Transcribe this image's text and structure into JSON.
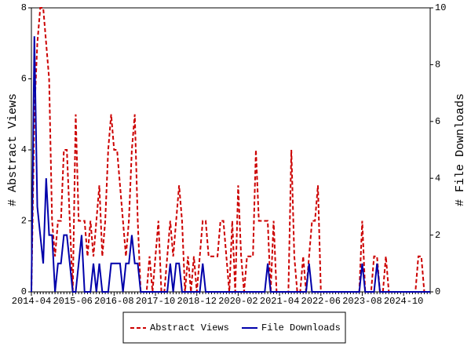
{
  "chart_data": {
    "type": "line",
    "y_label": "# Abstract Views",
    "y2_label": "# File Downloads",
    "categories": [
      "2014-04",
      null,
      null,
      null,
      null,
      null,
      null,
      null,
      null,
      null,
      null,
      null,
      null,
      null,
      "2015-06",
      null,
      null,
      null,
      null,
      null,
      null,
      null,
      null,
      null,
      null,
      null,
      null,
      null,
      "2016-08",
      null,
      null,
      null,
      null,
      null,
      null,
      null,
      null,
      null,
      null,
      null,
      null,
      null,
      "2017-10",
      null,
      null,
      null,
      null,
      null,
      null,
      null,
      null,
      null,
      null,
      null,
      null,
      null,
      "2018-12",
      null,
      null,
      null,
      null,
      null,
      null,
      null,
      null,
      null,
      null,
      null,
      null,
      null,
      "2020-02",
      null,
      null,
      null,
      null,
      null,
      null,
      null,
      null,
      null,
      null,
      null,
      null,
      null,
      "2021-04",
      null,
      null,
      null,
      null,
      null,
      null,
      null,
      null,
      null,
      null,
      null,
      null,
      null,
      "2022-06",
      null,
      null,
      null,
      null,
      null,
      null,
      null,
      null,
      null,
      null,
      null,
      null,
      null,
      "2023-08",
      null,
      null,
      null,
      null,
      null,
      null,
      null,
      null,
      null,
      null,
      null,
      null,
      null,
      "2024-10",
      null,
      null,
      null,
      null,
      null,
      null,
      null,
      null,
      null
    ],
    "ylim": [
      0,
      8
    ],
    "yticks": [
      0,
      2,
      4,
      6,
      8
    ],
    "y2lim": [
      0,
      10
    ],
    "y2ticks": [
      0,
      2,
      4,
      6,
      8,
      10
    ],
    "series": [
      {
        "name": "Abstract Views",
        "color": "#cc0000",
        "dashed": true,
        "values": [
          0,
          5,
          7,
          8,
          8,
          7,
          6,
          2,
          1,
          2,
          2,
          4,
          4,
          2,
          0,
          5,
          2,
          2,
          2,
          1,
          2,
          1,
          2,
          3,
          1,
          2,
          4,
          5,
          4,
          4,
          3,
          2,
          1,
          2,
          4,
          5,
          2,
          0,
          0,
          0,
          1,
          0,
          1,
          2,
          0,
          0,
          1,
          2,
          1,
          2,
          3,
          2,
          0,
          1,
          0,
          1,
          0,
          1,
          2,
          2,
          1,
          1,
          1,
          1,
          2,
          2,
          1,
          0,
          2,
          0,
          3,
          1,
          0,
          1,
          1,
          1,
          4,
          2,
          2,
          2,
          2,
          0,
          2,
          0,
          0,
          0,
          0,
          0,
          4,
          1,
          0,
          0,
          1,
          0,
          1,
          2,
          2,
          3,
          0,
          0,
          0,
          0,
          0,
          0,
          0,
          0,
          0,
          0,
          0,
          0,
          0,
          0,
          2,
          0,
          0,
          0,
          1,
          1,
          0,
          0,
          1,
          0,
          0,
          0,
          0,
          0,
          0,
          0,
          0,
          0,
          0,
          1,
          1,
          0,
          0,
          0
        ]
      },
      {
        "name": "File Downloads",
        "color": "#0000aa",
        "dashed": false,
        "axis": "y2",
        "values": [
          0,
          9,
          3,
          2,
          1,
          4,
          2,
          2,
          0,
          1,
          1,
          2,
          2,
          1,
          0,
          0,
          1,
          2,
          0,
          0,
          0,
          1,
          0,
          1,
          0,
          0,
          0,
          1,
          1,
          1,
          1,
          0,
          1,
          1,
          2,
          1,
          1,
          0,
          0,
          0,
          0,
          0,
          0,
          0,
          0,
          0,
          0,
          1,
          0,
          1,
          1,
          0,
          0,
          0,
          0,
          0,
          0,
          0,
          1,
          0,
          0,
          0,
          0,
          0,
          0,
          0,
          0,
          0,
          0,
          0,
          0,
          0,
          0,
          0,
          0,
          0,
          0,
          0,
          0,
          0,
          1,
          0,
          0,
          0,
          0,
          0,
          0,
          0,
          0,
          0,
          0,
          0,
          0,
          0,
          1,
          0,
          0,
          0,
          0,
          0,
          0,
          0,
          0,
          0,
          0,
          0,
          0,
          0,
          0,
          0,
          0,
          0,
          1,
          0,
          0,
          0,
          0,
          1,
          0,
          0,
          0,
          0,
          0,
          0,
          0,
          0,
          0,
          0,
          0,
          0,
          0,
          0,
          0,
          0,
          0,
          0
        ]
      }
    ]
  }
}
